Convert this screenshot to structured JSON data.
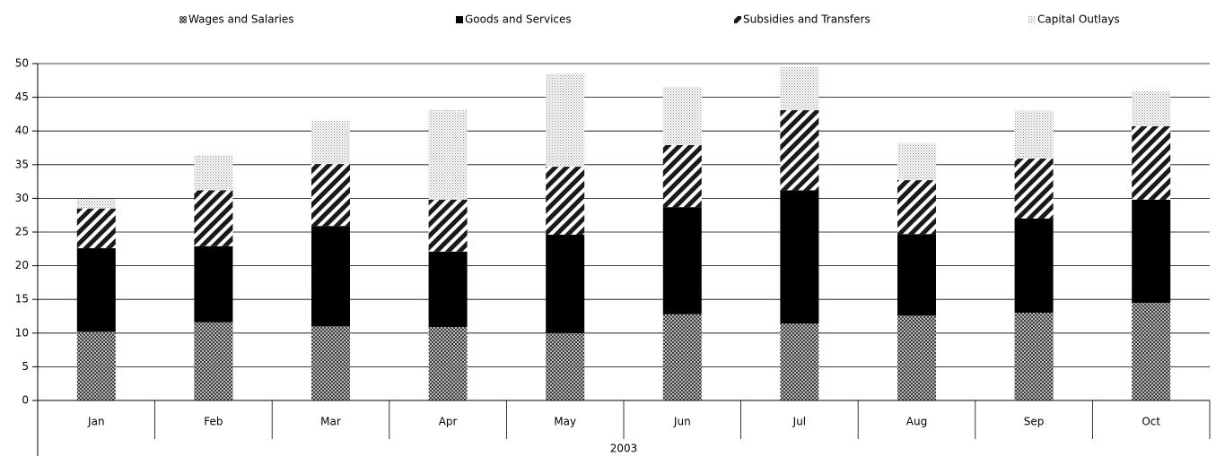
{
  "chart_data": {
    "type": "stacked_bar",
    "categories": [
      "Jan",
      "Feb",
      "Mar",
      "Apr",
      "May",
      "Jun",
      "Jul",
      "Aug",
      "Sep",
      "Oct"
    ],
    "category_group": "2003",
    "series": [
      {
        "name": "Wages and Salaries",
        "color": "#3a3a3a",
        "pattern": "crosshatch",
        "values": [
          10.2,
          11.6,
          11.0,
          10.9,
          10.0,
          12.8,
          11.4,
          12.6,
          13.0,
          14.5
        ]
      },
      {
        "name": "Goods and Services",
        "color": "#000000",
        "pattern": "solid",
        "values": [
          12.4,
          11.3,
          14.9,
          11.2,
          14.6,
          15.9,
          19.8,
          12.1,
          14.0,
          15.3
        ]
      },
      {
        "name": "Subsidies and Transfers",
        "color": "#1a1a1a",
        "pattern": "stripes",
        "values": [
          5.9,
          8.3,
          9.2,
          7.7,
          10.1,
          9.2,
          11.9,
          8.0,
          8.9,
          10.9
        ]
      },
      {
        "name": "Capital Outlays",
        "color": "#8a8a8a",
        "pattern": "dots",
        "values": [
          1.4,
          5.2,
          6.4,
          13.3,
          13.8,
          8.6,
          6.4,
          5.5,
          7.1,
          5.2
        ]
      }
    ],
    "ylim": [
      0,
      50
    ],
    "yticks": [
      0,
      5,
      10,
      15,
      20,
      25,
      30,
      35,
      40,
      45,
      50
    ],
    "grid": true,
    "legend": "top"
  }
}
